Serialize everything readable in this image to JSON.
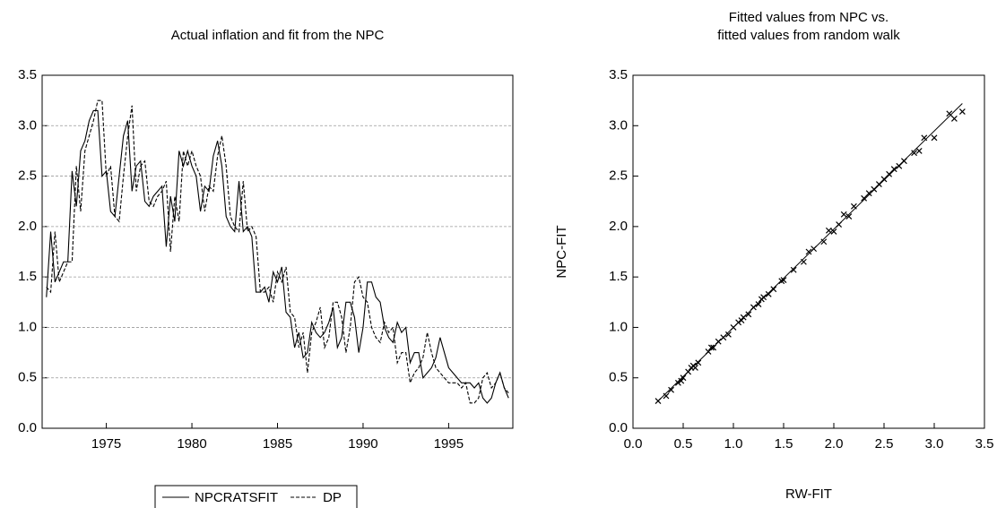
{
  "chart_data": [
    {
      "type": "line",
      "title": "Actual inflation and fit from the NPC",
      "x": [
        1971.5,
        1971.75,
        1972,
        1972.25,
        1972.5,
        1972.75,
        1973,
        1973.25,
        1973.5,
        1973.75,
        1974,
        1974.25,
        1974.5,
        1974.75,
        1975,
        1975.25,
        1975.5,
        1975.75,
        1976,
        1976.25,
        1976.5,
        1976.75,
        1977,
        1977.25,
        1977.5,
        1977.75,
        1978,
        1978.25,
        1978.5,
        1978.75,
        1979,
        1979.25,
        1979.5,
        1979.75,
        1980,
        1980.25,
        1980.5,
        1980.75,
        1981,
        1981.25,
        1981.5,
        1981.75,
        1982,
        1982.25,
        1982.5,
        1982.75,
        1983,
        1983.25,
        1983.5,
        1983.75,
        1984,
        1984.25,
        1984.5,
        1984.75,
        1985,
        1985.25,
        1985.5,
        1985.75,
        1986,
        1986.25,
        1986.5,
        1986.75,
        1987,
        1987.25,
        1987.5,
        1987.75,
        1988,
        1988.25,
        1988.5,
        1988.75,
        1989,
        1989.25,
        1989.5,
        1989.75,
        1990,
        1990.25,
        1990.5,
        1990.75,
        1991,
        1991.25,
        1991.5,
        1991.75,
        1992,
        1992.25,
        1992.5,
        1992.75,
        1993,
        1993.25,
        1993.5,
        1993.75,
        1994,
        1994.25,
        1994.5,
        1994.75,
        1995,
        1995.25,
        1995.5,
        1995.75,
        1996,
        1996.25,
        1996.5,
        1996.75,
        1997,
        1997.25,
        1997.5,
        1997.75,
        1998,
        1998.25,
        1998.5
      ],
      "series": [
        {
          "name": "NPCRATSFIT",
          "color": "#000000",
          "dash": "solid",
          "values": [
            1.3,
            1.95,
            1.45,
            1.55,
            1.65,
            1.65,
            2.55,
            2.2,
            2.75,
            2.85,
            3.05,
            3.15,
            3.15,
            2.5,
            2.55,
            2.15,
            2.1,
            2.5,
            2.9,
            3.05,
            2.35,
            2.6,
            2.65,
            2.25,
            2.2,
            2.3,
            2.35,
            2.4,
            1.8,
            2.3,
            2.05,
            2.75,
            2.6,
            2.75,
            2.6,
            2.5,
            2.15,
            2.4,
            2.35,
            2.7,
            2.85,
            2.6,
            2.1,
            2.0,
            1.95,
            2.45,
            1.95,
            2.0,
            1.9,
            1.35,
            1.35,
            1.4,
            1.25,
            1.55,
            1.45,
            1.6,
            1.15,
            1.1,
            0.8,
            0.95,
            0.7,
            0.75,
            1.05,
            0.95,
            0.9,
            0.95,
            1.05,
            1.2,
            0.8,
            0.9,
            1.25,
            1.25,
            1.1,
            0.75,
            1.0,
            1.45,
            1.45,
            1.3,
            1.25,
            1.0,
            0.9,
            0.85,
            1.05,
            0.95,
            1.0,
            0.65,
            0.75,
            0.75,
            0.5,
            0.55,
            0.6,
            0.7,
            0.9,
            0.75,
            0.6,
            0.55,
            0.5,
            0.45,
            0.45,
            0.45,
            0.4,
            0.45,
            0.3,
            0.25,
            0.3,
            0.45,
            0.55,
            0.4,
            0.3
          ]
        },
        {
          "name": "DP",
          "color": "#000000",
          "dash": "dashed",
          "values": [
            1.4,
            1.35,
            1.95,
            1.45,
            1.55,
            1.65,
            1.65,
            2.6,
            2.15,
            2.75,
            2.9,
            3.05,
            3.25,
            3.25,
            2.5,
            2.6,
            2.1,
            2.05,
            2.5,
            2.9,
            3.2,
            2.35,
            2.6,
            2.65,
            2.25,
            2.2,
            2.3,
            2.35,
            2.45,
            1.75,
            2.3,
            2.05,
            2.75,
            2.6,
            2.75,
            2.6,
            2.5,
            2.15,
            2.4,
            2.35,
            2.7,
            2.9,
            2.6,
            2.1,
            2.0,
            1.95,
            2.45,
            1.95,
            2.0,
            1.9,
            1.35,
            1.35,
            1.4,
            1.25,
            1.55,
            1.45,
            1.6,
            1.15,
            1.1,
            0.8,
            0.95,
            0.55,
            0.95,
            1.05,
            1.2,
            0.8,
            0.9,
            1.25,
            1.25,
            1.1,
            0.75,
            1.0,
            1.45,
            1.5,
            1.3,
            1.25,
            1.0,
            0.9,
            0.85,
            1.05,
            0.95,
            1.0,
            0.65,
            0.75,
            0.75,
            0.45,
            0.55,
            0.6,
            0.7,
            0.95,
            0.75,
            0.6,
            0.55,
            0.5,
            0.45,
            0.45,
            0.45,
            0.4,
            0.45,
            0.25,
            0.25,
            0.3,
            0.5,
            0.55,
            0.4,
            0.45,
            0.55,
            0.4,
            0.35
          ]
        }
      ],
      "xlim": [
        1971.25,
        1998.75
      ],
      "xticks": [
        1975,
        1980,
        1985,
        1990,
        1995
      ],
      "ylim": [
        0,
        3.5
      ],
      "yticks": [
        {
          "value": 0,
          "label": "0.0"
        },
        0.5,
        {
          "value": 1,
          "label": "1.0"
        },
        1.5,
        {
          "value": 2,
          "label": "2.0"
        },
        2.5,
        {
          "value": 3,
          "label": "3.0"
        },
        3.5
      ],
      "grid": true,
      "legend": "bottom"
    },
    {
      "type": "scatter",
      "title": [
        "Fitted values from NPC vs.",
        "fitted values from random walk"
      ],
      "xlabel": "RW-FIT",
      "ylabel": "NPC-FIT",
      "color": "#000000",
      "marker": "x",
      "x": [
        0.25,
        0.33,
        0.38,
        0.45,
        0.48,
        0.5,
        0.55,
        0.58,
        0.6,
        0.62,
        0.65,
        0.75,
        0.78,
        0.8,
        0.85,
        0.9,
        0.95,
        1.0,
        1.05,
        1.08,
        1.1,
        1.15,
        1.2,
        1.25,
        1.28,
        1.3,
        1.35,
        1.4,
        1.48,
        1.5,
        1.6,
        1.7,
        1.75,
        1.8,
        1.9,
        1.95,
        2.0,
        2.05,
        2.1,
        2.15,
        2.2,
        2.3,
        2.35,
        2.4,
        2.45,
        2.5,
        2.55,
        2.6,
        2.65,
        2.7,
        2.8,
        2.85,
        2.9,
        3.0,
        3.15,
        3.2,
        3.28
      ],
      "y": [
        0.27,
        0.32,
        0.38,
        0.45,
        0.47,
        0.5,
        0.56,
        0.6,
        0.62,
        0.6,
        0.65,
        0.76,
        0.8,
        0.8,
        0.86,
        0.9,
        0.93,
        1.0,
        1.05,
        1.07,
        1.1,
        1.13,
        1.2,
        1.23,
        1.28,
        1.3,
        1.33,
        1.38,
        1.46,
        1.47,
        1.57,
        1.65,
        1.75,
        1.78,
        1.85,
        1.96,
        1.95,
        2.02,
        2.12,
        2.1,
        2.2,
        2.28,
        2.33,
        2.37,
        2.42,
        2.47,
        2.52,
        2.57,
        2.6,
        2.65,
        2.73,
        2.75,
        2.88,
        2.88,
        3.12,
        3.07,
        3.14
      ],
      "fit_line": {
        "x": [
          0.25,
          3.28
        ],
        "y": [
          0.27,
          3.22
        ]
      },
      "xlim": [
        0,
        3.5
      ],
      "ylim": [
        0,
        3.5
      ],
      "xticks": [
        {
          "value": 0,
          "label": "0.0"
        },
        0.5,
        {
          "value": 1,
          "label": "1.0"
        },
        1.5,
        {
          "value": 2,
          "label": "2.0"
        },
        2.5,
        {
          "value": 3,
          "label": "3.0"
        },
        3.5
      ],
      "yticks": [
        {
          "value": 0,
          "label": "0.0"
        },
        0.5,
        {
          "value": 1,
          "label": "1.0"
        },
        1.5,
        {
          "value": 2,
          "label": "2.0"
        },
        2.5,
        {
          "value": 3,
          "label": "3.0"
        },
        3.5
      ],
      "grid": false
    }
  ]
}
